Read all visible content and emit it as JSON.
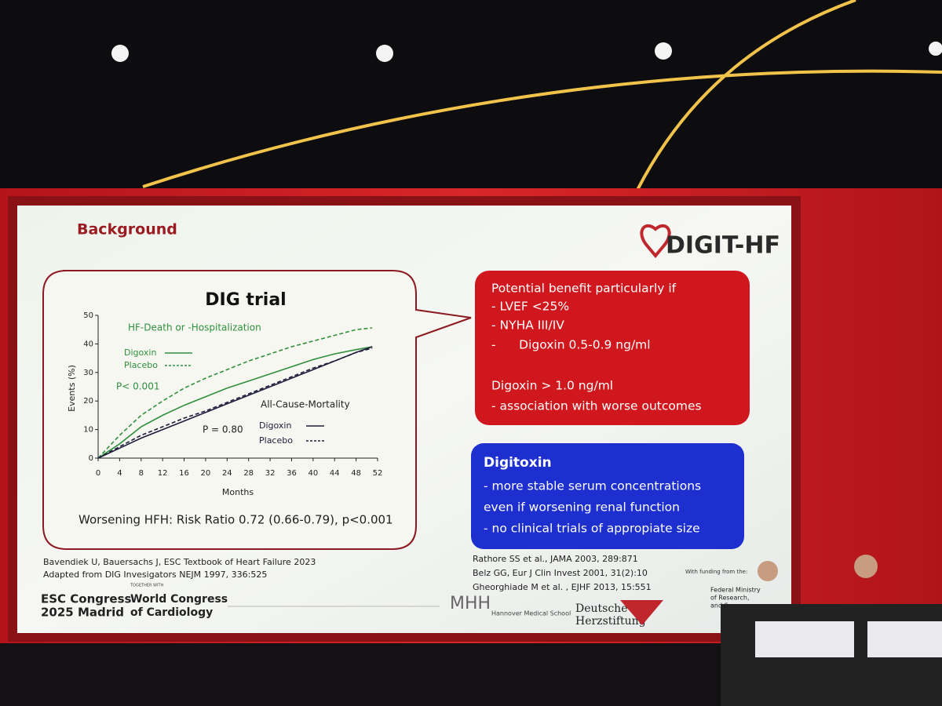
{
  "slide": {
    "section": "Background",
    "logo": "DIGIT-HF",
    "chart_title": "DIG trial",
    "annotations": {
      "hf_group": "HF-Death or -Hospitalization",
      "hf_p": "P< 0.001",
      "mort_group": "All-Cause-Mortality",
      "mort_p": "P = 0.80"
    },
    "result": "Worsening HFH: Risk Ratio 0.72 (0.66-0.79), p<0.001",
    "references_left": [
      "Bavendiek U, Bauersachs J, ESC Textbook of Heart Failure 2023",
      "Adapted from DIG Invesigators NEJM 1997, 336:525"
    ],
    "red_box": [
      "Potential benefit particularly if",
      "- LVEF <25%",
      "- NYHA III/IV",
      "-      Digoxin 0.5-0.9 ng/ml",
      "Digoxin > 1.0 ng/ml",
      "- association with worse outcomes"
    ],
    "blue_box": {
      "heading": "Digitoxin",
      "lines": [
        "- more stable serum concentrations",
        "even if worsening renal function",
        "- no clinical trials of appropiate size"
      ]
    },
    "references_right": [
      "Rathore SS et al., JAMA 2003, 289:871",
      "Belz GG, Eur J Clin Invest 2001, 31(2):10",
      "Gheorghiade M et al. , EJHF 2013, 15:551"
    ],
    "footer": {
      "esc1": "ESC Congress",
      "esc2": "2025 Madrid",
      "together": "TOGETHER WITH",
      "wcc1": "World Congress",
      "wcc2": "of Cardiology",
      "mhh": "MHH",
      "mhh_name": "Hannover Medical School",
      "dh1": "Deutsche",
      "dh2": "Herzstiftung",
      "funding": "With funding from the:",
      "ministry": [
        "Federal Ministry",
        "of Research,",
        "and Space"
      ]
    }
  },
  "chart_data": {
    "type": "line",
    "x_label": "Months",
    "y_label": "Events (%)",
    "x": [
      0,
      4,
      8,
      12,
      16,
      20,
      24,
      28,
      32,
      36,
      40,
      44,
      48,
      51
    ],
    "series": [
      {
        "name": "Digoxin",
        "color": "#2f8f3c",
        "dashed": false,
        "values": [
          0,
          5,
          11,
          15,
          18.5,
          21.5,
          24.5,
          27,
          29.5,
          32,
          34.5,
          36.5,
          38,
          39
        ]
      },
      {
        "name": "Placebo",
        "color": "#2f8f3c",
        "dashed": true,
        "values": [
          0,
          8,
          15,
          20,
          24.5,
          28,
          31,
          34,
          36.5,
          39,
          41,
          43,
          45,
          45.6
        ]
      },
      {
        "name": "Digoxin",
        "color": "#1e1e3c",
        "dashed": false,
        "values": [
          0,
          3.5,
          7,
          10,
          13,
          16,
          19,
          22,
          25,
          28,
          31,
          34,
          37,
          39
        ]
      },
      {
        "name": "Placebo",
        "color": "#1e1e3c",
        "dashed": true,
        "values": [
          0,
          4,
          8,
          11,
          14,
          16.5,
          19.5,
          22.5,
          25.5,
          28.5,
          31.5,
          34,
          37,
          38.5
        ]
      }
    ],
    "xlim": [
      0,
      52
    ],
    "ylim": [
      0,
      50
    ],
    "xticks": [
      0,
      4,
      8,
      12,
      16,
      20,
      24,
      28,
      32,
      36,
      40,
      44,
      48,
      52
    ],
    "yticks": [
      0,
      10,
      20,
      30,
      40,
      50
    ]
  }
}
